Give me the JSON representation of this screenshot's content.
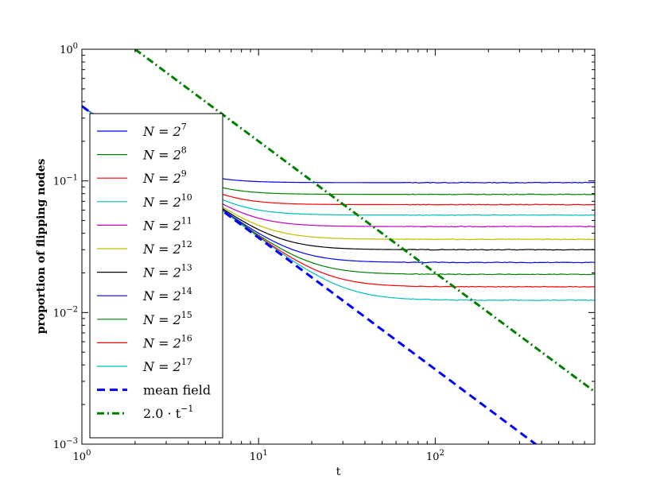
{
  "chart_data": {
    "type": "line",
    "xlabel": "t",
    "ylabel": "proportion of flipping nodes",
    "xscale": "log",
    "yscale": "log",
    "xlim": [
      1,
      800
    ],
    "ylim": [
      0.001,
      1
    ],
    "x_ticks": [
      {
        "value": 1,
        "base": "10",
        "exp": "0"
      },
      {
        "value": 10,
        "base": "10",
        "exp": "1"
      },
      {
        "value": 100,
        "base": "10",
        "exp": "2"
      }
    ],
    "y_ticks": [
      {
        "value": 0.001,
        "base": "10",
        "exp": "−3"
      },
      {
        "value": 0.01,
        "base": "10",
        "exp": "−2"
      },
      {
        "value": 0.1,
        "base": "10",
        "exp": "−1"
      },
      {
        "value": 1,
        "base": "10",
        "exp": "0"
      }
    ],
    "legend_position": "left",
    "reference_lines": {
      "mean_field": {
        "label": "mean field",
        "color": "#0000ff",
        "start_y": 0.37,
        "slope": -1
      },
      "fit": {
        "label": "2.0 · t",
        "label_exp": "−1",
        "color": "#008000",
        "coefficient": 2.0,
        "exponent": -1,
        "x_start": 2,
        "x_end": 800
      }
    },
    "series": [
      {
        "name": "N = 2",
        "exp": "7",
        "color": "#0000ff",
        "plateau": 0.097
      },
      {
        "name": "N = 2",
        "exp": "8",
        "color": "#008000",
        "plateau": 0.079
      },
      {
        "name": "N = 2",
        "exp": "9",
        "color": "#ff0000",
        "plateau": 0.066
      },
      {
        "name": "N = 2",
        "exp": "10",
        "color": "#00bfbf",
        "plateau": 0.055
      },
      {
        "name": "N = 2",
        "exp": "11",
        "color": "#bf00bf",
        "plateau": 0.045
      },
      {
        "name": "N = 2",
        "exp": "12",
        "color": "#bfbf00",
        "plateau": 0.036
      },
      {
        "name": "N = 2",
        "exp": "13",
        "color": "#000000",
        "plateau": 0.03
      },
      {
        "name": "N = 2",
        "exp": "14",
        "color": "#0000ff",
        "plateau": 0.024
      },
      {
        "name": "N = 2",
        "exp": "15",
        "color": "#008000",
        "plateau": 0.0195
      },
      {
        "name": "N = 2",
        "exp": "16",
        "color": "#ff0000",
        "plateau": 0.0157
      },
      {
        "name": "N = 2",
        "exp": "17",
        "color": "#00bfbf",
        "plateau": 0.0124
      }
    ]
  }
}
